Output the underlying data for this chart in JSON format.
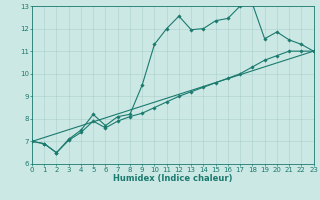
{
  "xlabel": "Humidex (Indice chaleur)",
  "bg_color": "#cce8e5",
  "grid_color": "#aacfcc",
  "line_color": "#1a7a6e",
  "xlim": [
    0,
    23
  ],
  "ylim": [
    6,
    13
  ],
  "xticks": [
    0,
    1,
    2,
    3,
    4,
    5,
    6,
    7,
    8,
    9,
    10,
    11,
    12,
    13,
    14,
    15,
    16,
    17,
    18,
    19,
    20,
    21,
    22,
    23
  ],
  "yticks": [
    6,
    7,
    8,
    9,
    10,
    11,
    12,
    13
  ],
  "line1_x": [
    0,
    1,
    2,
    3,
    4,
    5,
    6,
    7,
    8,
    9,
    10,
    11,
    12,
    13,
    14,
    15,
    16,
    17,
    18,
    19,
    20,
    21,
    22,
    23
  ],
  "line1_y": [
    7.0,
    6.9,
    6.5,
    7.1,
    7.5,
    8.2,
    7.7,
    8.1,
    8.2,
    9.5,
    11.3,
    12.0,
    12.55,
    11.95,
    12.0,
    12.35,
    12.45,
    13.0,
    13.1,
    11.55,
    11.85,
    11.5,
    11.3,
    11.0
  ],
  "line2_x": [
    0,
    1,
    2,
    3,
    4,
    5,
    6,
    7,
    8,
    9,
    10,
    11,
    12,
    13,
    14,
    15,
    16,
    17,
    18,
    19,
    20,
    21,
    22,
    23
  ],
  "line2_y": [
    7.0,
    6.9,
    6.5,
    7.05,
    7.4,
    7.9,
    7.6,
    7.9,
    8.1,
    8.25,
    8.5,
    8.75,
    9.0,
    9.2,
    9.4,
    9.6,
    9.8,
    10.0,
    10.3,
    10.6,
    10.8,
    11.0,
    11.0,
    11.0
  ],
  "line3_x": [
    0,
    23
  ],
  "line3_y": [
    7.0,
    11.0
  ],
  "tick_fontsize": 5.0,
  "xlabel_fontsize": 6.0,
  "marker_size": 1.8,
  "line_width": 0.8
}
